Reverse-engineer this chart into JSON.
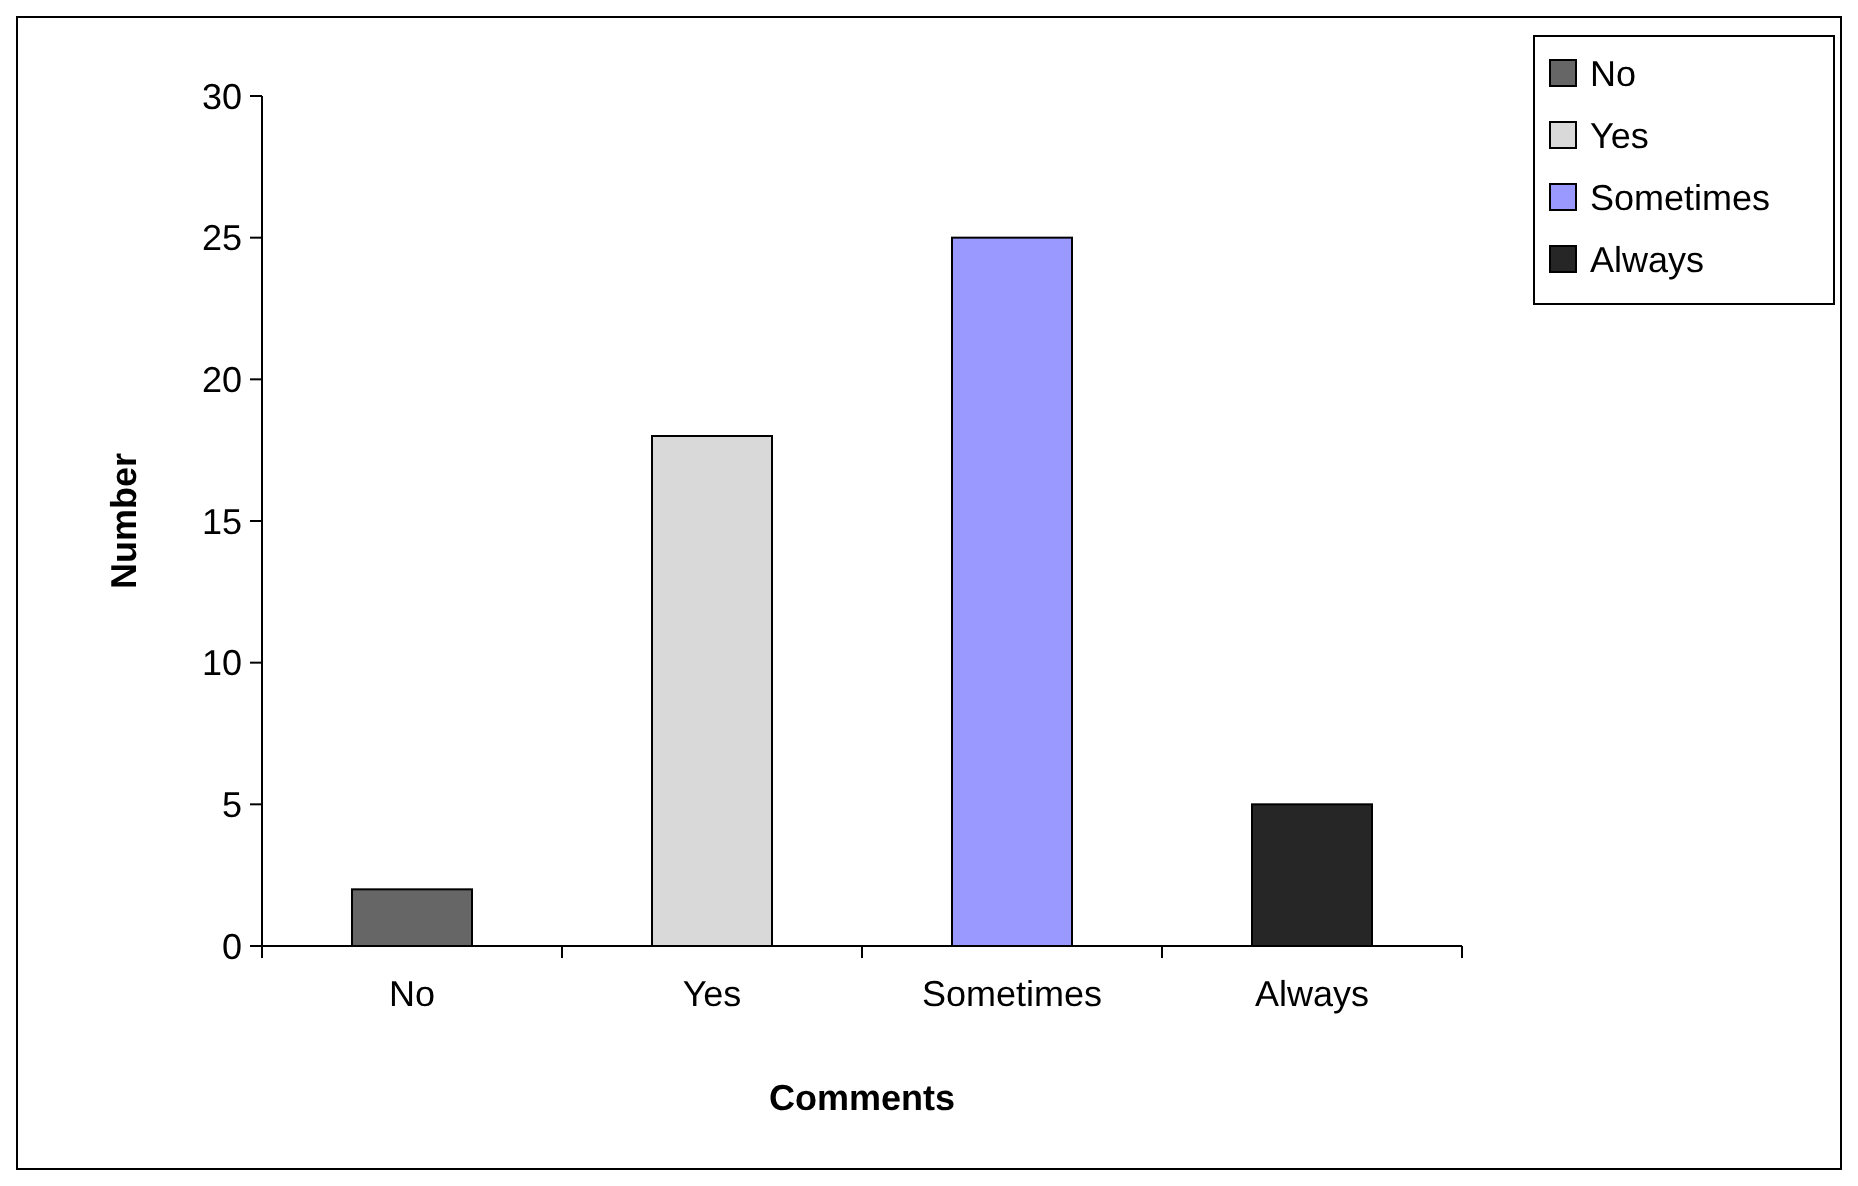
{
  "chart_data": {
    "type": "bar",
    "xlabel": "Comments",
    "ylabel": "Number",
    "categories": [
      "No",
      "Yes",
      "Sometimes",
      "Always"
    ],
    "series": [
      {
        "name": "No",
        "color": "#666666",
        "values": [
          2,
          null,
          null,
          null
        ]
      },
      {
        "name": "Yes",
        "color": "#d9d9d9",
        "values": [
          null,
          18,
          null,
          null
        ]
      },
      {
        "name": "Sometimes",
        "color": "#9999ff",
        "values": [
          null,
          null,
          25,
          null
        ]
      },
      {
        "name": "Always",
        "color": "#262626",
        "values": [
          null,
          null,
          null,
          5
        ]
      }
    ],
    "stacked": true,
    "ylim": [
      0,
      30
    ],
    "yticks": [
      0,
      5,
      10,
      15,
      20,
      25,
      30
    ],
    "grid": false,
    "legend": "top right"
  }
}
